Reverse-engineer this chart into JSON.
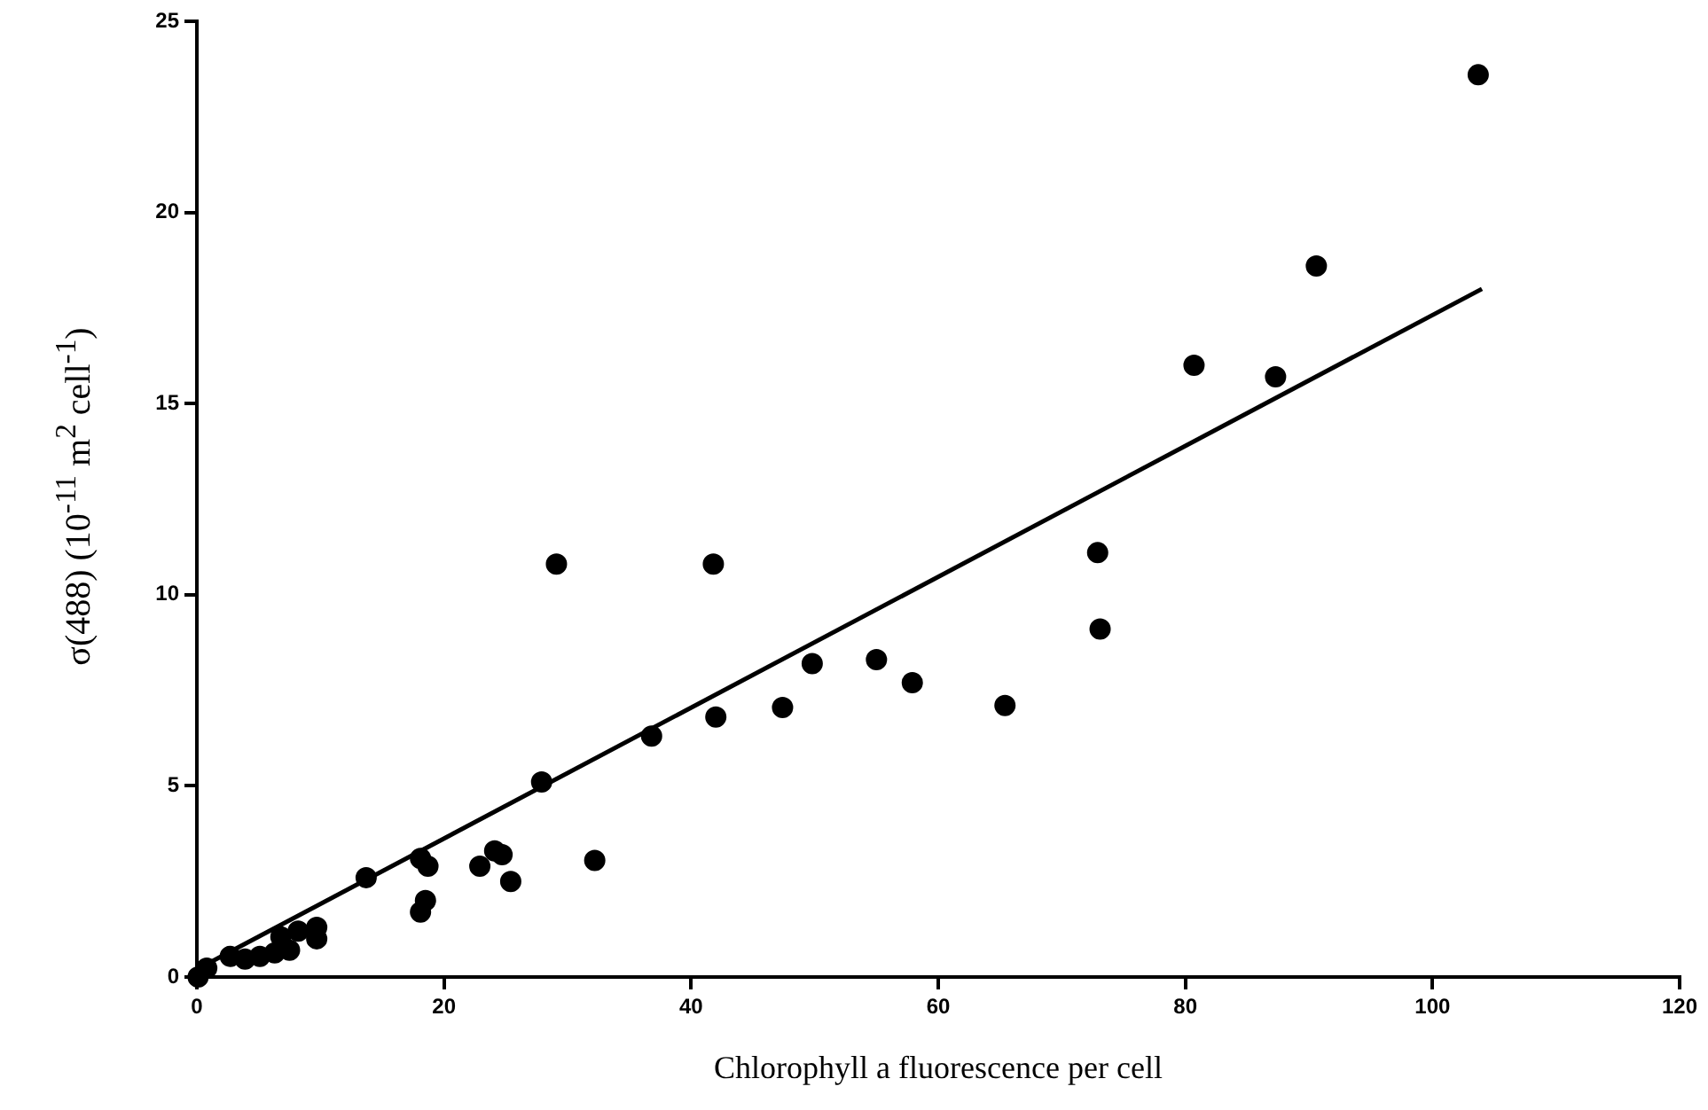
{
  "chart_data": {
    "type": "scatter",
    "xlabel": "Chlorophyll a fluorescence per cell",
    "ylabel": "σ(488) (10$^{-11}$ m$^{2}$ cell$^{-1}$)",
    "xlim": [
      0,
      120
    ],
    "xticks": [
      0,
      20,
      40,
      60,
      80,
      100,
      120
    ],
    "ylim": [
      0,
      25
    ],
    "yticks": [
      0,
      5,
      10,
      15,
      20,
      25
    ],
    "grid": false,
    "legend": false,
    "marker": "circle",
    "series": [
      {
        "type": "scatter",
        "color": "#000000",
        "x": [
          0.1,
          0.8,
          2.7,
          3.9,
          5.1,
          6.3,
          6.8,
          7.5,
          8.2,
          9.7,
          9.7,
          13.7,
          18.1,
          18.7,
          18.5,
          18.1,
          22.9,
          24.1,
          24.7,
          25.4,
          27.9,
          29.1,
          32.2,
          36.8,
          41.8,
          42.0,
          47.4,
          49.8,
          55.0,
          57.9,
          65.4,
          72.9,
          73.1,
          80.7,
          87.3,
          90.6,
          103.7
        ],
        "values": [
          0,
          0.23,
          0.54,
          0.47,
          0.54,
          0.63,
          1.05,
          0.7,
          1.2,
          1.3,
          1.0,
          2.6,
          3.1,
          2.9,
          2.0,
          1.7,
          2.9,
          3.3,
          3.2,
          2.5,
          5.1,
          10.8,
          3.05,
          6.3,
          10.8,
          6.8,
          7.05,
          8.2,
          8.3,
          7.7,
          7.1,
          11.1,
          9.1,
          16.0,
          15.7,
          18.6,
          23.6
        ]
      },
      {
        "type": "line",
        "color": "#000000",
        "marker": "none",
        "line_style": "solid",
        "x": [
          0,
          104
        ],
        "values": [
          0.2,
          18.0
        ]
      }
    ]
  }
}
